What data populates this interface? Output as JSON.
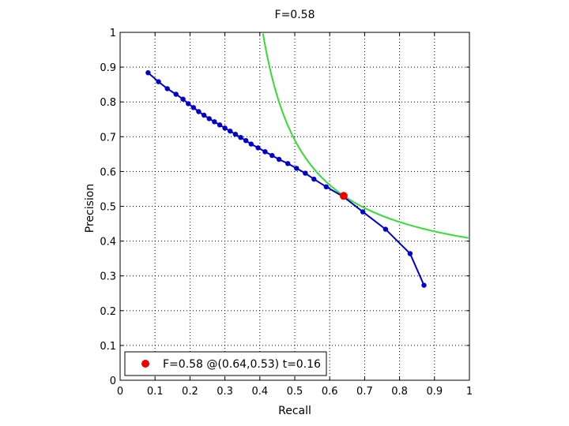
{
  "chart_data": {
    "type": "line",
    "title": "F=0.58",
    "xlabel": "Recall",
    "ylabel": "Precision",
    "xlim": [
      0,
      1
    ],
    "ylim": [
      0,
      1
    ],
    "grid": true,
    "x_ticks": [
      "0",
      "0.1",
      "0.2",
      "0.3",
      "0.4",
      "0.5",
      "0.6",
      "0.7",
      "0.8",
      "0.9",
      "1"
    ],
    "y_ticks": [
      "0",
      "0.1",
      "0.2",
      "0.3",
      "0.4",
      "0.5",
      "0.6",
      "0.7",
      "0.8",
      "0.9",
      "1"
    ],
    "series": [
      {
        "color": "#0000cc",
        "markers": true,
        "points": [
          [
            0.08,
            0.884
          ],
          [
            0.11,
            0.858
          ],
          [
            0.135,
            0.838
          ],
          [
            0.16,
            0.822
          ],
          [
            0.18,
            0.808
          ],
          [
            0.195,
            0.795
          ],
          [
            0.21,
            0.784
          ],
          [
            0.225,
            0.772
          ],
          [
            0.24,
            0.762
          ],
          [
            0.255,
            0.752
          ],
          [
            0.27,
            0.743
          ],
          [
            0.285,
            0.734
          ],
          [
            0.3,
            0.725
          ],
          [
            0.315,
            0.716
          ],
          [
            0.33,
            0.707
          ],
          [
            0.345,
            0.698
          ],
          [
            0.36,
            0.689
          ],
          [
            0.375,
            0.679
          ],
          [
            0.395,
            0.668
          ],
          [
            0.415,
            0.657
          ],
          [
            0.435,
            0.646
          ],
          [
            0.455,
            0.635
          ],
          [
            0.48,
            0.623
          ],
          [
            0.505,
            0.609
          ],
          [
            0.53,
            0.595
          ],
          [
            0.555,
            0.578
          ],
          [
            0.59,
            0.556
          ],
          [
            0.64,
            0.527
          ],
          [
            0.695,
            0.484
          ],
          [
            0.76,
            0.434
          ],
          [
            0.83,
            0.364
          ],
          [
            0.87,
            0.273
          ]
        ]
      },
      {
        "color": "#33dd33",
        "markers": false,
        "iso_f": 0.58
      }
    ],
    "best_point": {
      "x": 0.64,
      "y": 0.53,
      "color": "#ee0000"
    },
    "legend": {
      "position": "bottom-left",
      "entries": [
        {
          "label": "F=0.58 @(0.64,0.53) t=0.16",
          "color": "#ee0000"
        }
      ]
    }
  }
}
